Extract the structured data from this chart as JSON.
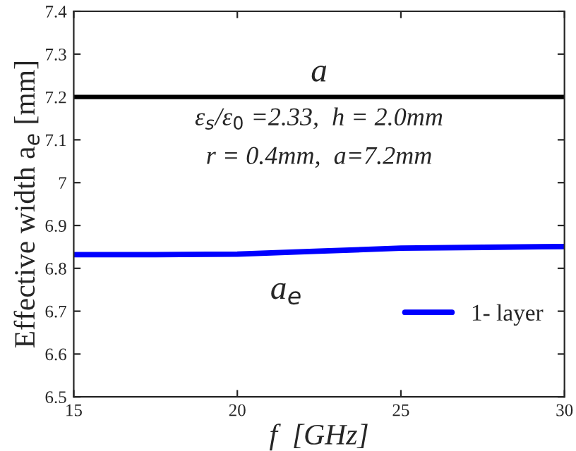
{
  "chart_data": {
    "type": "line",
    "xlabel": "f  [GHz]",
    "ylabel": "Effective width a$_{e}$ [mm]",
    "x": [
      15,
      17.5,
      20,
      22.5,
      25,
      27.5,
      30
    ],
    "series": [
      {
        "name": "1- layer",
        "color": "#0000ff",
        "values": [
          6.832,
          6.832,
          6.833,
          6.84,
          6.847,
          6.849,
          6.851
        ]
      }
    ],
    "ref_lines": [
      {
        "axis": "y",
        "value": 7.2,
        "label": "a",
        "color": "#000000"
      }
    ],
    "annotations": [
      "ε$_{s}$/ε$_{0}$ =2.33,  h = 2.0mm",
      "r = 0.4mm,  a=7.2mm",
      {
        "text": "a$_{e}$",
        "x": 21.5,
        "y": 6.837
      }
    ],
    "xlim": [
      15,
      30
    ],
    "xticks": [
      15,
      20,
      25,
      30
    ],
    "ylim": [
      6.5,
      7.4
    ],
    "yticks": [
      6.5,
      6.6,
      6.7,
      6.8,
      6.9,
      {
        "value": 7,
        "label": "7"
      },
      7.1,
      7.2,
      7.3,
      7.4
    ],
    "grid": false,
    "legend": "bottom right",
    "marker": "none",
    "line_style": "solid"
  }
}
